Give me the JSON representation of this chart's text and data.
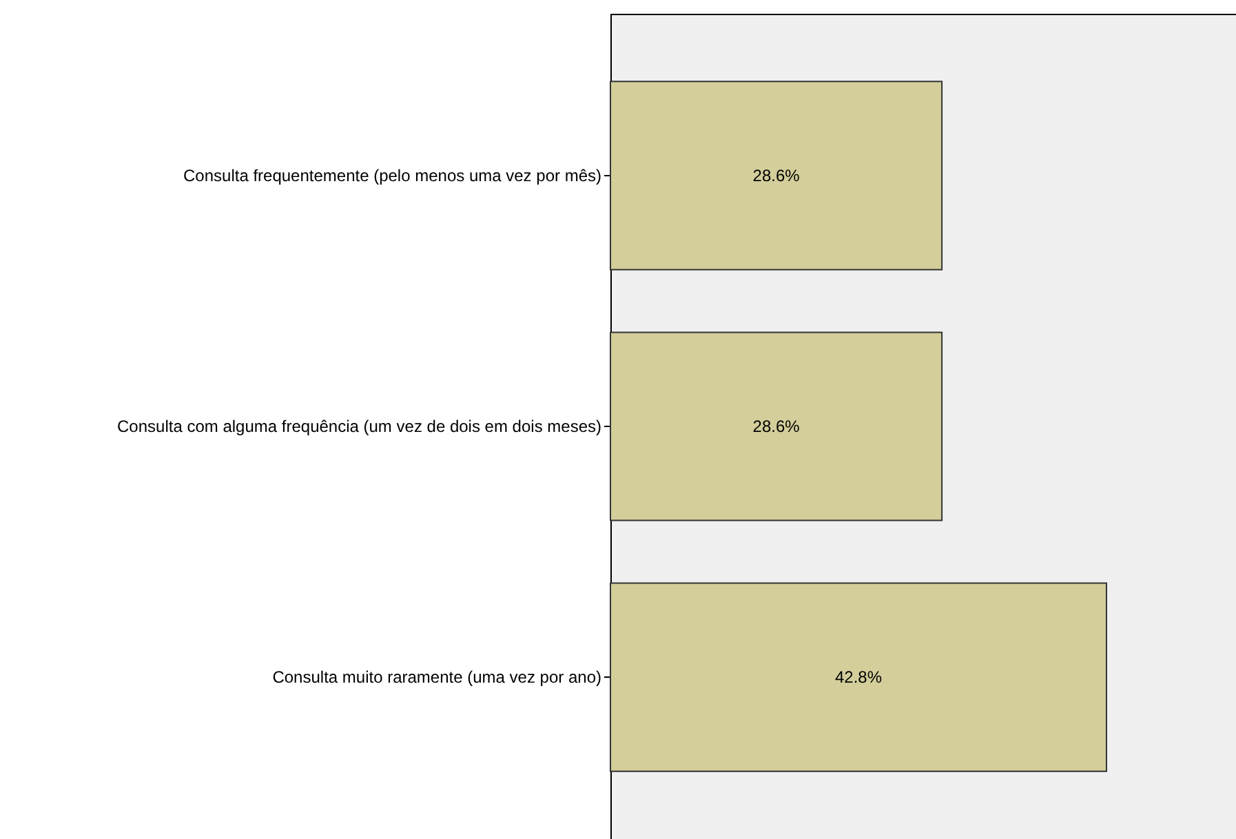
{
  "chart_data": {
    "type": "bar",
    "orientation": "horizontal",
    "categories": [
      "Consulta frequentemente (pelo menos uma vez por mês)",
      "Consulta com alguma frequência (um vez de dois em dois meses)",
      "Consulta muito raramente (uma vez por ano)"
    ],
    "values": [
      28.6,
      28.6,
      42.8
    ],
    "value_labels": [
      "28.6%",
      "28.6%",
      "42.8%"
    ],
    "color": "#d3ce9a",
    "tick_labels": "y"
  }
}
